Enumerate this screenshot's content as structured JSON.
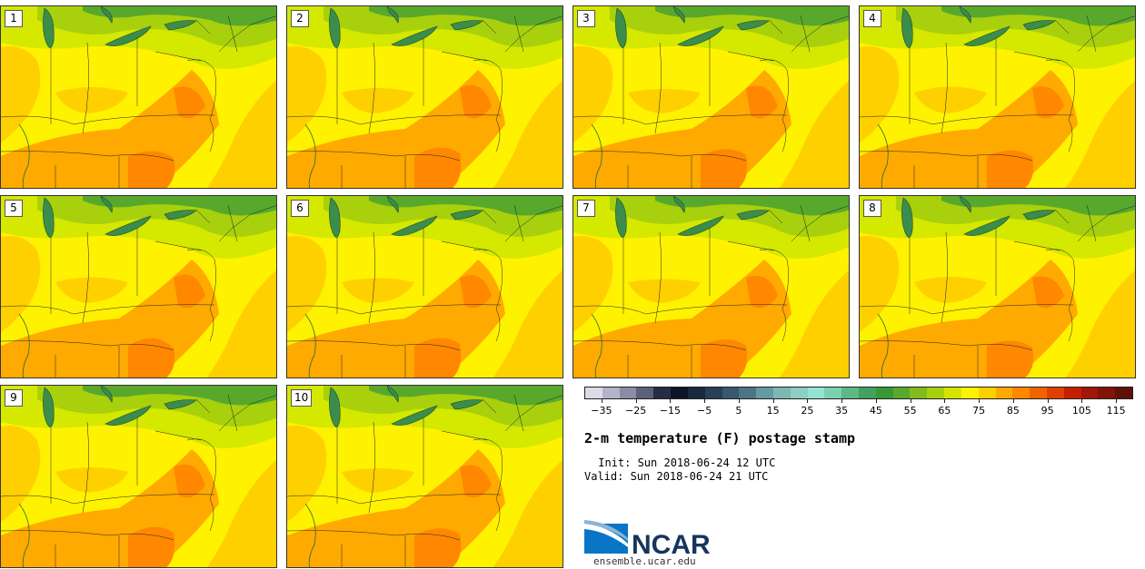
{
  "panels": [
    {
      "label": "1"
    },
    {
      "label": "2"
    },
    {
      "label": "3"
    },
    {
      "label": "4"
    },
    {
      "label": "5"
    },
    {
      "label": "6"
    },
    {
      "label": "7"
    },
    {
      "label": "8"
    },
    {
      "label": "9"
    },
    {
      "label": "10"
    }
  ],
  "colorbar": {
    "ticks": [
      "−35",
      "−25",
      "−15",
      "−5",
      "5",
      "15",
      "25",
      "35",
      "45",
      "55",
      "65",
      "75",
      "85",
      "95",
      "105",
      "115"
    ],
    "colors": [
      "#dcdce8",
      "#b4b4c8",
      "#8c8ca4",
      "#5c6078",
      "#262c44",
      "#0c1428",
      "#1a2840",
      "#284058",
      "#385870",
      "#4c7486",
      "#649aa0",
      "#7cb8b4",
      "#8cd0c4",
      "#94e4d4",
      "#7cd0b0",
      "#5cb884",
      "#44a060",
      "#389838",
      "#58a82c",
      "#80bc1c",
      "#a8d00c",
      "#d4e400",
      "#fff200",
      "#ffd000",
      "#ffaa00",
      "#ff8800",
      "#f06400",
      "#e04000",
      "#c42000",
      "#a01808",
      "#801408",
      "#601008"
    ]
  },
  "title": "2-m temperature (F) postage stamp",
  "init_line": " Init: Sun 2018-06-24 12 UTC",
  "valid_line": "Valid: Sun 2018-06-24 21 UTC",
  "logo_text": "NCAR",
  "url": "ensemble.ucar.edu"
}
